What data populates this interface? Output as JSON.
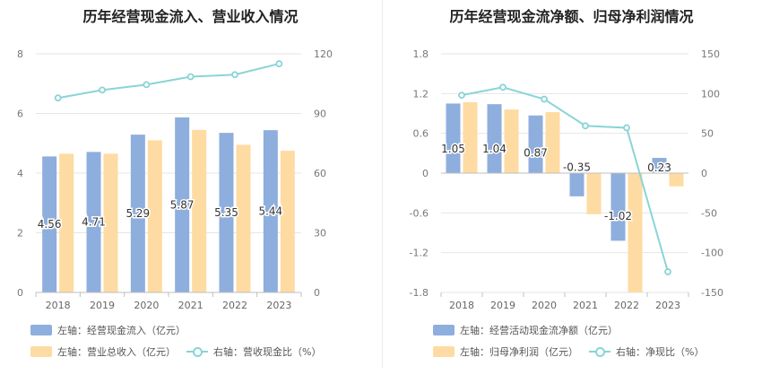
{
  "chart_data": [
    {
      "type": "bar",
      "title": "历年经营现金流入、营业收入情况",
      "categories": [
        "2018",
        "2019",
        "2020",
        "2021",
        "2022",
        "2023"
      ],
      "left_axis": {
        "min": 0,
        "max": 8,
        "ticks": [
          0,
          2,
          4,
          6,
          8
        ]
      },
      "right_axis": {
        "min": 0,
        "max": 120,
        "ticks": [
          0,
          30,
          60,
          90,
          120
        ]
      },
      "series": [
        {
          "name": "左轴：经营现金流入（亿元）",
          "kind": "bar",
          "axis": "left",
          "color": "#8eaedd",
          "values": [
            4.56,
            4.71,
            5.29,
            5.87,
            5.35,
            5.44
          ],
          "labels": [
            "4.56",
            "4.71",
            "5.29",
            "5.87",
            "5.35",
            "5.44"
          ]
        },
        {
          "name": "左轴：营业总收入（亿元）",
          "kind": "bar",
          "axis": "left",
          "color": "#fedba2",
          "values": [
            4.65,
            4.65,
            5.1,
            5.45,
            4.95,
            4.75
          ]
        },
        {
          "name": "右轴：营收现金比（%）",
          "kind": "line",
          "axis": "right",
          "color": "#8ad4d6",
          "values": [
            97.8,
            101.8,
            104.5,
            108.5,
            109.5,
            115.0
          ]
        }
      ],
      "grid": true,
      "legend_placement": "bottom-left"
    },
    {
      "type": "bar",
      "title": "历年经营现金流净额、归母净利润情况",
      "categories": [
        "2018",
        "2019",
        "2020",
        "2021",
        "2022",
        "2023"
      ],
      "left_axis": {
        "min": -1.8,
        "max": 1.8,
        "ticks": [
          -1.8,
          -1.2,
          -0.6,
          0,
          0.6,
          1.2,
          1.8
        ]
      },
      "right_axis": {
        "min": -150,
        "max": 150,
        "ticks": [
          -150,
          -100,
          -50,
          0,
          50,
          100,
          150
        ]
      },
      "series": [
        {
          "name": "左轴：经营活动现金流净额（亿元）",
          "kind": "bar",
          "axis": "left",
          "color": "#8eaedd",
          "values": [
            1.05,
            1.04,
            0.87,
            -0.35,
            -1.02,
            0.23
          ],
          "labels": [
            "1.05",
            "1.04",
            "0.87",
            "-0.35",
            "-1.02",
            "0.23"
          ]
        },
        {
          "name": "左轴：归母净利润（亿元）",
          "kind": "bar",
          "axis": "left",
          "color": "#fedba2",
          "values": [
            1.07,
            0.96,
            0.92,
            -0.62,
            -1.8,
            -0.2
          ]
        },
        {
          "name": "右轴：净现比（%）",
          "kind": "line",
          "axis": "right",
          "color": "#8ad4d6",
          "values": [
            98.0,
            108.0,
            93.0,
            59.5,
            57.0,
            -124.0
          ]
        }
      ],
      "grid": true,
      "legend_placement": "bottom-left"
    }
  ]
}
